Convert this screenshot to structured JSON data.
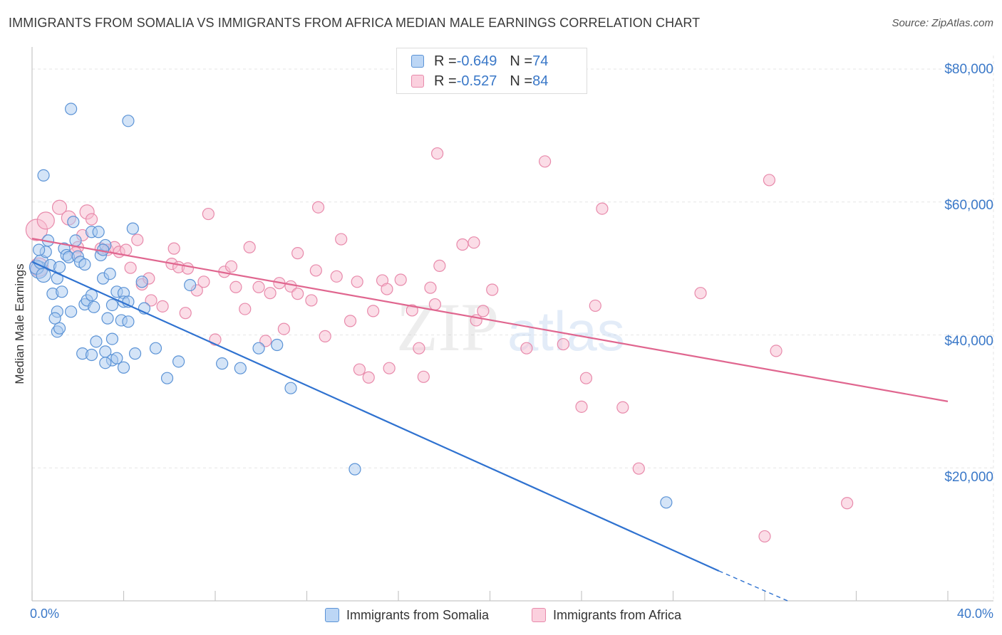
{
  "header": {
    "title": "IMMIGRANTS FROM SOMALIA VS IMMIGRANTS FROM AFRICA MEDIAN MALE EARNINGS CORRELATION CHART",
    "source": "Source: ZipAtlas.com"
  },
  "watermark": {
    "zip": "ZIP",
    "atlas": "atlas"
  },
  "stats": {
    "somalia": {
      "r_label": "R = ",
      "r": "-0.649",
      "n_label": "N = ",
      "n": "74"
    },
    "africa": {
      "r_label": "R = ",
      "r": "-0.527",
      "n_label": "N = ",
      "n": "84"
    }
  },
  "colors": {
    "somalia_fill": "#a9c9ef",
    "somalia_stroke": "#5b93d6",
    "somalia_line": "#2f72d0",
    "africa_fill": "#f7bcd0",
    "africa_stroke": "#e88aab",
    "africa_line": "#e0668f",
    "tick_text": "#3a78c8",
    "grid": "#e6e6e6"
  },
  "chart_data": {
    "type": "scatter",
    "title": "IMMIGRANTS FROM SOMALIA VS IMMIGRANTS FROM AFRICA MEDIAN MALE EARNINGS CORRELATION CHART",
    "xlabel": "",
    "ylabel": "Median Male Earnings",
    "xlim": [
      0,
      40
    ],
    "ylim": [
      0,
      80000
    ],
    "x_tick_labels": [
      "0.0%",
      "40.0%"
    ],
    "y_ticks": [
      20000,
      40000,
      60000,
      80000
    ],
    "y_tick_labels": [
      "$20,000",
      "$40,000",
      "$60,000",
      "$80,000"
    ],
    "grid": true,
    "legend_position": "bottom-center",
    "series": [
      {
        "name": "Immigrants from Somalia",
        "trend": {
          "x": [
            0,
            30,
            33
          ],
          "y": [
            51000,
            4500,
            0
          ]
        },
        "points": [
          [
            0.3,
            49800,
            3
          ],
          [
            0.2,
            50200,
            2
          ],
          [
            0.4,
            51000,
            2
          ],
          [
            0.5,
            49000,
            2
          ],
          [
            0.6,
            52500,
            1
          ],
          [
            0.3,
            52800,
            1
          ],
          [
            0.7,
            54200,
            1
          ],
          [
            0.8,
            50500,
            1
          ],
          [
            1.1,
            48500,
            1
          ],
          [
            1.2,
            50200,
            1
          ],
          [
            1.4,
            53000,
            1
          ],
          [
            1.5,
            52000,
            1
          ],
          [
            1.6,
            51700,
            1
          ],
          [
            1.8,
            57000,
            1
          ],
          [
            1.9,
            54200,
            1
          ],
          [
            2.0,
            51800,
            1
          ],
          [
            2.1,
            51000,
            1
          ],
          [
            2.3,
            50600,
            1
          ],
          [
            2.6,
            55500,
            1
          ],
          [
            2.9,
            55500,
            1
          ],
          [
            3.0,
            52000,
            1
          ],
          [
            3.2,
            53500,
            1
          ],
          [
            3.1,
            52800,
            1
          ],
          [
            0.5,
            64000,
            1
          ],
          [
            1.7,
            74000,
            1
          ],
          [
            4.2,
            72200,
            1
          ],
          [
            4.4,
            56000,
            1
          ],
          [
            0.9,
            46200,
            1
          ],
          [
            1.3,
            46500,
            1
          ],
          [
            1.1,
            43500,
            1
          ],
          [
            1.1,
            40500,
            1
          ],
          [
            1.0,
            42500,
            1
          ],
          [
            1.7,
            43500,
            1
          ],
          [
            1.2,
            41000,
            1
          ],
          [
            2.3,
            44600,
            1
          ],
          [
            2.4,
            45200,
            1
          ],
          [
            2.6,
            46000,
            1
          ],
          [
            2.7,
            44200,
            1
          ],
          [
            3.1,
            48500,
            1
          ],
          [
            3.4,
            49200,
            1
          ],
          [
            3.7,
            46500,
            1
          ],
          [
            4.0,
            46300,
            1
          ],
          [
            3.5,
            44500,
            1
          ],
          [
            4.0,
            45000,
            1
          ],
          [
            4.2,
            45000,
            1
          ],
          [
            3.3,
            42500,
            1
          ],
          [
            3.9,
            42200,
            1
          ],
          [
            4.2,
            42000,
            1
          ],
          [
            4.9,
            44000,
            1
          ],
          [
            4.8,
            48000,
            1
          ],
          [
            2.8,
            39000,
            1
          ],
          [
            3.5,
            39400,
            1
          ],
          [
            2.2,
            37200,
            1
          ],
          [
            2.6,
            37000,
            1
          ],
          [
            3.2,
            37500,
            1
          ],
          [
            3.5,
            36200,
            1
          ],
          [
            3.7,
            36500,
            1
          ],
          [
            3.2,
            35800,
            1
          ],
          [
            4.0,
            35100,
            1
          ],
          [
            4.5,
            37200,
            1
          ],
          [
            5.4,
            38000,
            1
          ],
          [
            5.9,
            33500,
            1
          ],
          [
            6.4,
            36000,
            1
          ],
          [
            6.9,
            47500,
            1
          ],
          [
            8.3,
            35700,
            1
          ],
          [
            9.1,
            35000,
            1
          ],
          [
            9.9,
            38000,
            1
          ],
          [
            10.7,
            38500,
            1
          ],
          [
            11.3,
            32000,
            1
          ],
          [
            14.1,
            19800,
            1
          ],
          [
            27.7,
            14800,
            1
          ]
        ]
      },
      {
        "name": "Immigrants from Africa",
        "trend": {
          "x": [
            0,
            40
          ],
          "y": [
            54500,
            30000
          ]
        },
        "points": [
          [
            0.2,
            55800,
            6
          ],
          [
            0.3,
            50200,
            4
          ],
          [
            0.6,
            57200,
            3
          ],
          [
            1.2,
            59200,
            2
          ],
          [
            1.6,
            57600,
            2
          ],
          [
            2.4,
            58500,
            2
          ],
          [
            2.6,
            57400,
            1
          ],
          [
            2.2,
            55000,
            1
          ],
          [
            2.0,
            53200,
            1
          ],
          [
            1.9,
            52400,
            1
          ],
          [
            3.0,
            53000,
            1
          ],
          [
            3.3,
            52800,
            1
          ],
          [
            3.6,
            53200,
            1
          ],
          [
            3.8,
            52500,
            1
          ],
          [
            4.1,
            52800,
            1
          ],
          [
            4.6,
            54300,
            1
          ],
          [
            4.3,
            50100,
            1
          ],
          [
            4.8,
            47600,
            1
          ],
          [
            5.1,
            48500,
            1
          ],
          [
            5.2,
            45200,
            1
          ],
          [
            5.7,
            44300,
            1
          ],
          [
            6.1,
            50700,
            1
          ],
          [
            6.2,
            53000,
            1
          ],
          [
            6.4,
            50200,
            1
          ],
          [
            6.8,
            50000,
            1
          ],
          [
            6.7,
            43300,
            1
          ],
          [
            7.2,
            46700,
            1
          ],
          [
            7.5,
            48000,
            1
          ],
          [
            7.7,
            58200,
            1
          ],
          [
            8.0,
            39300,
            1
          ],
          [
            8.4,
            49500,
            1
          ],
          [
            8.7,
            50300,
            1
          ],
          [
            8.9,
            47200,
            1
          ],
          [
            9.3,
            43900,
            1
          ],
          [
            9.5,
            53200,
            1
          ],
          [
            9.9,
            47200,
            1
          ],
          [
            10.2,
            39100,
            1
          ],
          [
            10.4,
            46300,
            1
          ],
          [
            10.8,
            47800,
            1
          ],
          [
            11.0,
            40900,
            1
          ],
          [
            11.3,
            47300,
            1
          ],
          [
            11.6,
            46200,
            1
          ],
          [
            11.6,
            52300,
            1
          ],
          [
            12.2,
            45200,
            1
          ],
          [
            12.4,
            49700,
            1
          ],
          [
            12.5,
            59200,
            1
          ],
          [
            12.8,
            39800,
            1
          ],
          [
            13.3,
            48800,
            1
          ],
          [
            13.5,
            54400,
            1
          ],
          [
            13.9,
            42100,
            1
          ],
          [
            14.2,
            48000,
            1
          ],
          [
            14.3,
            34800,
            1
          ],
          [
            14.7,
            33600,
            1
          ],
          [
            14.9,
            43600,
            1
          ],
          [
            15.3,
            48200,
            1
          ],
          [
            15.5,
            46900,
            1
          ],
          [
            15.6,
            35000,
            1
          ],
          [
            16.1,
            48300,
            1
          ],
          [
            16.6,
            43700,
            1
          ],
          [
            16.9,
            38000,
            1
          ],
          [
            17.1,
            33700,
            1
          ],
          [
            17.4,
            47100,
            1
          ],
          [
            17.8,
            50400,
            1
          ],
          [
            17.6,
            44600,
            1
          ],
          [
            17.7,
            67300,
            1
          ],
          [
            18.8,
            53600,
            1
          ],
          [
            19.3,
            53900,
            1
          ],
          [
            19.4,
            42200,
            1
          ],
          [
            19.7,
            43600,
            1
          ],
          [
            20.1,
            46800,
            1
          ],
          [
            21.6,
            38000,
            1
          ],
          [
            22.4,
            66100,
            1
          ],
          [
            23.2,
            38600,
            1
          ],
          [
            24.0,
            29200,
            1
          ],
          [
            24.2,
            33500,
            1
          ],
          [
            24.6,
            44400,
            1
          ],
          [
            24.9,
            59000,
            1
          ],
          [
            25.8,
            29100,
            1
          ],
          [
            26.5,
            19900,
            1
          ],
          [
            29.2,
            46300,
            1
          ],
          [
            32.2,
            63300,
            1
          ],
          [
            32.5,
            37600,
            1
          ],
          [
            32.0,
            9700,
            1
          ],
          [
            35.6,
            14700,
            1
          ]
        ]
      }
    ]
  },
  "legend": {
    "somalia": "Immigrants from Somalia",
    "africa": "Immigrants from Africa"
  }
}
